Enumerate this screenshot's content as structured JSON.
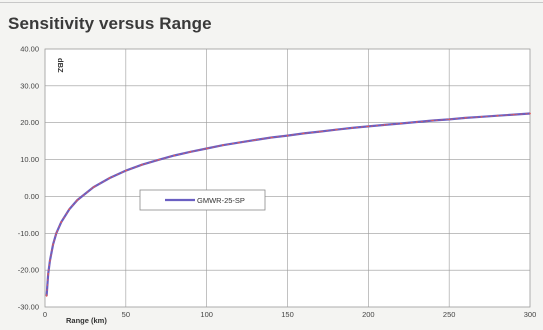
{
  "chart_data": {
    "type": "line",
    "title": "Sensitivity versus Range",
    "xlabel": "Range (km)",
    "ylabel": "dBZ",
    "xlim": [
      0,
      300
    ],
    "ylim": [
      -30,
      40
    ],
    "x_ticks": [
      "0",
      "50",
      "100",
      "150",
      "200",
      "250",
      "300"
    ],
    "y_ticks": [
      "-30.00",
      "-20.00",
      "-10.00",
      "0.00",
      "10.00",
      "20.00",
      "30.00",
      "40.00"
    ],
    "grid": true,
    "legend_placement": "center-left",
    "series": [
      {
        "name": "GMWR-25-SP",
        "color": "#6a5fc2",
        "marker_color": "#e05a5a",
        "x": [
          1,
          2,
          3,
          5,
          7,
          10,
          15,
          20,
          30,
          40,
          50,
          60,
          70,
          80,
          90,
          100,
          110,
          120,
          130,
          140,
          150,
          160,
          170,
          180,
          190,
          200,
          210,
          220,
          230,
          240,
          250,
          260,
          270,
          280,
          290,
          300
        ],
        "y": [
          -27.0,
          -21.0,
          -17.5,
          -13.0,
          -10.0,
          -7.0,
          -3.5,
          -1.0,
          2.5,
          5.0,
          7.0,
          8.6,
          9.9,
          11.1,
          12.1,
          13.0,
          13.9,
          14.6,
          15.3,
          16.0,
          16.5,
          17.1,
          17.6,
          18.1,
          18.6,
          19.0,
          19.4,
          19.8,
          20.2,
          20.6,
          20.9,
          21.3,
          21.6,
          21.9,
          22.2,
          22.5
        ]
      }
    ]
  }
}
